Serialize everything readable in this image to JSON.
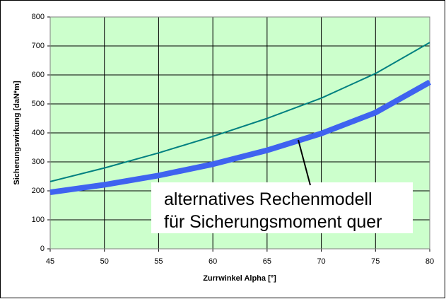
{
  "chart_data": {
    "type": "line",
    "xlabel": "Zurrwinkel Alpha [°]",
    "ylabel": "Sicherungswirkung [daN*m]",
    "x": [
      45,
      50,
      55,
      60,
      65,
      70,
      75,
      80
    ],
    "series": [
      {
        "color": "#008080",
        "width": 2,
        "values": [
          232,
          279,
          331,
          388,
          450,
          520,
          605,
          712
        ]
      },
      {
        "color": "#3f63f0",
        "width": 8,
        "values": [
          195,
          221,
          253,
          292,
          340,
          398,
          470,
          575
        ]
      }
    ],
    "xlim": [
      45,
      80
    ],
    "xticks": [
      45,
      50,
      55,
      60,
      65,
      70,
      75,
      80
    ],
    "ylim": [
      0,
      800
    ],
    "yticks": [
      0,
      100,
      200,
      300,
      400,
      500,
      600,
      700,
      800
    ],
    "grid": true,
    "plot_background": "#ccffcc",
    "annotation": [
      "alternatives Rechenmodell",
      "für Sicherungsmoment quer"
    ]
  }
}
